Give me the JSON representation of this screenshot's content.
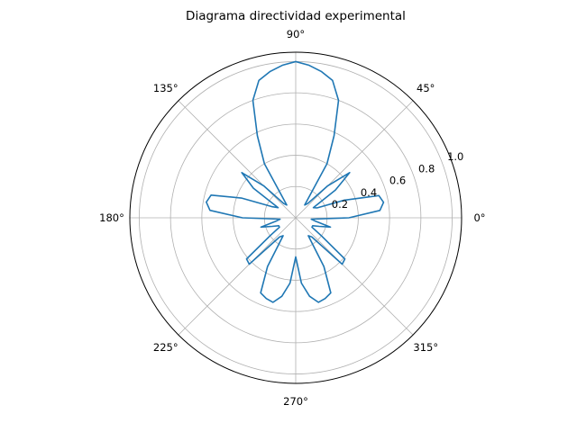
{
  "chart_data": {
    "type": "line",
    "projection": "polar",
    "title": "Diagrama directividad experimental",
    "theta_ticks": [
      "0°",
      "45°",
      "90°",
      "135°",
      "180°",
      "225°",
      "270°",
      "315°"
    ],
    "theta_tick_values_deg": [
      0,
      45,
      90,
      135,
      180,
      225,
      270,
      315
    ],
    "r_ticks": [
      "0.2",
      "0.4",
      "0.6",
      "0.8",
      "1.0"
    ],
    "r_tick_values": [
      0.2,
      0.4,
      0.6,
      0.8,
      1.0
    ],
    "rlim": [
      0,
      1.06
    ],
    "grid": true,
    "series": [
      {
        "color": "#1f77b4",
        "theta_deg": [
          0,
          5,
          10,
          15,
          20,
          25,
          30,
          35,
          40,
          45,
          50,
          55,
          60,
          65,
          70,
          75,
          80,
          85,
          90,
          95,
          100,
          105,
          110,
          115,
          120,
          125,
          130,
          135,
          140,
          145,
          150,
          155,
          160,
          165,
          170,
          175,
          180,
          185,
          190,
          195,
          200,
          205,
          210,
          215,
          220,
          225,
          230,
          235,
          240,
          245,
          250,
          255,
          260,
          265,
          270,
          275,
          280,
          285,
          290,
          295,
          300,
          305,
          310,
          315,
          320,
          325,
          330,
          335,
          340,
          345,
          350,
          355,
          360
        ],
        "r": [
          0.34,
          0.54,
          0.57,
          0.55,
          0.33,
          0.15,
          0.13,
          0.31,
          0.45,
          0.29,
          0.12,
          0.1,
          0.4,
          0.58,
          0.8,
          0.91,
          0.95,
          0.98,
          1.0,
          0.98,
          0.95,
          0.91,
          0.8,
          0.58,
          0.4,
          0.1,
          0.12,
          0.29,
          0.45,
          0.33,
          0.13,
          0.17,
          0.37,
          0.56,
          0.58,
          0.55,
          0.34,
          0.1,
          0.13,
          0.23,
          0.16,
          0.12,
          0.12,
          0.2,
          0.41,
          0.42,
          0.16,
          0.14,
          0.36,
          0.53,
          0.55,
          0.56,
          0.51,
          0.42,
          0.25,
          0.42,
          0.51,
          0.56,
          0.55,
          0.53,
          0.36,
          0.14,
          0.16,
          0.42,
          0.41,
          0.2,
          0.12,
          0.12,
          0.16,
          0.23,
          0.13,
          0.1,
          0.34
        ]
      }
    ]
  }
}
